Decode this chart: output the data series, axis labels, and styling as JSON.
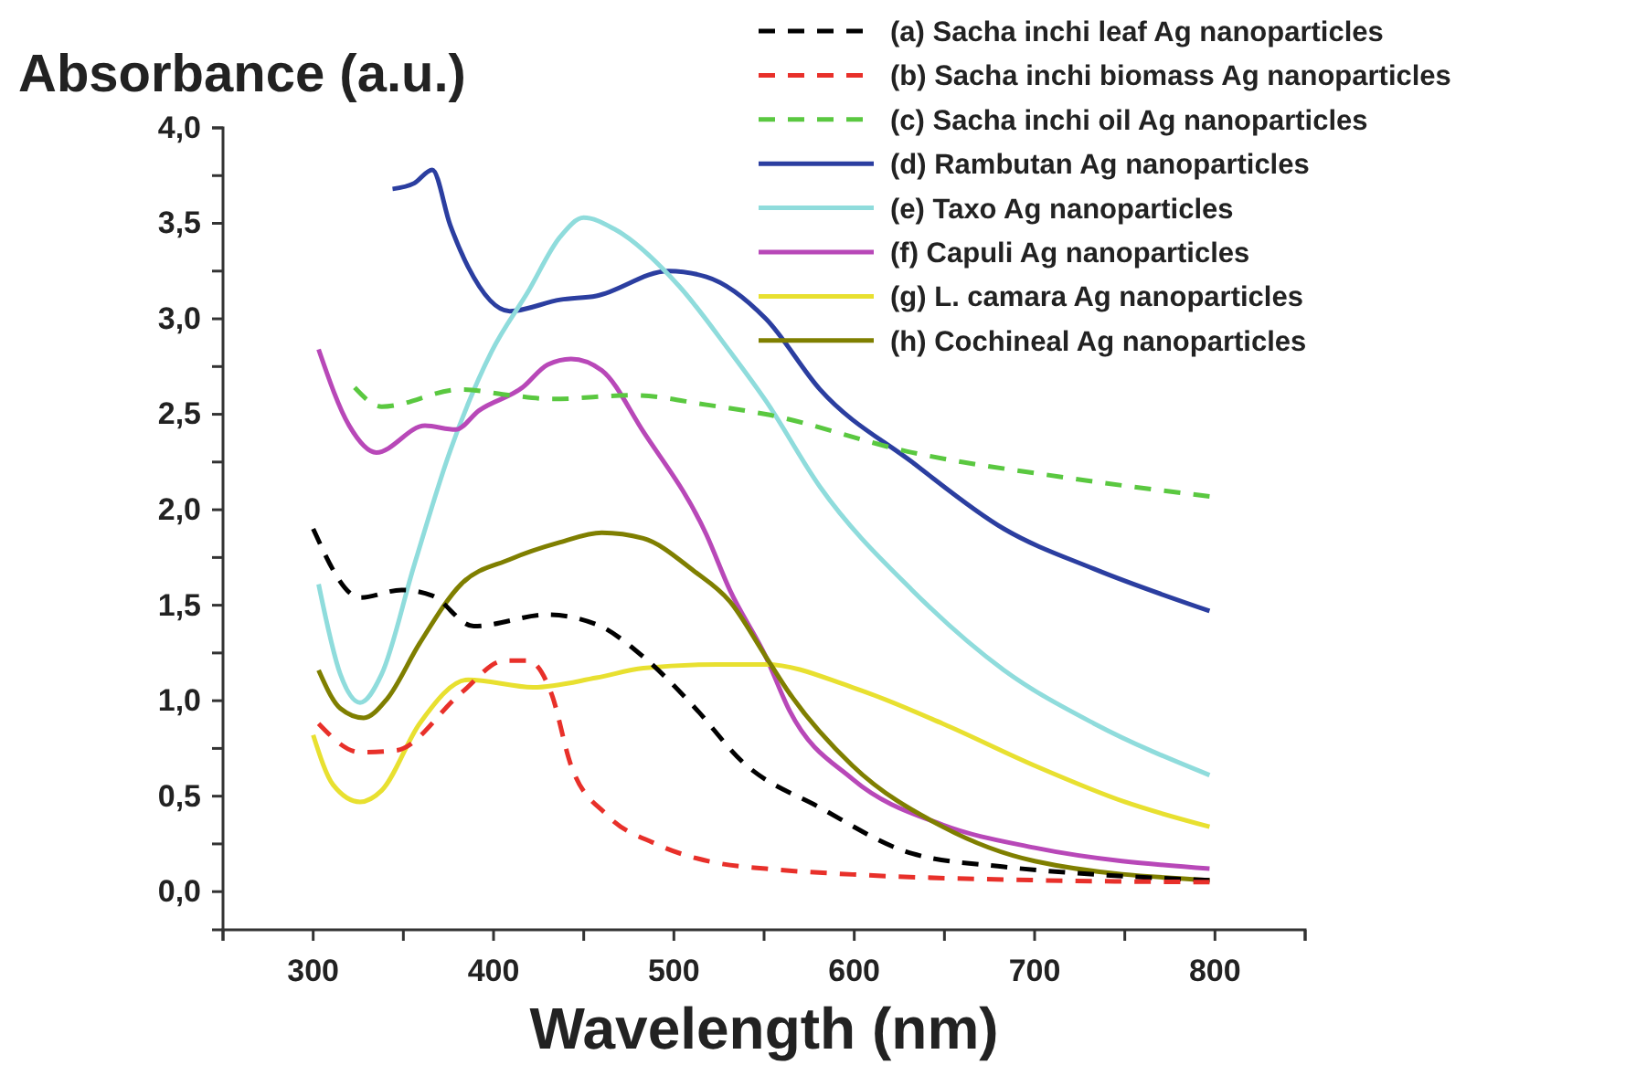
{
  "chart_data": {
    "type": "line",
    "xlabel": "Wavelength (nm)",
    "ylabel": "Absorbance (a.u.)",
    "xlim": [
      250,
      850
    ],
    "xticks": [
      {
        "value": 250,
        "label": null
      },
      300,
      {
        "value": 350,
        "label": null
      },
      400,
      {
        "value": 450,
        "label": null
      },
      500,
      {
        "value": 550,
        "label": null
      },
      600,
      {
        "value": 650,
        "label": null
      },
      700,
      {
        "value": 750,
        "label": null
      },
      800,
      {
        "value": 850,
        "label": null
      }
    ],
    "ylim": [
      -0.2,
      4.0
    ],
    "yticks": [
      {
        "value": 0,
        "label": "0,0"
      },
      {
        "value": 0.25,
        "label": null
      },
      {
        "value": 0.5,
        "label": "0,5"
      },
      {
        "value": 0.75,
        "label": null
      },
      {
        "value": 1,
        "label": "1,0"
      },
      {
        "value": 1.25,
        "label": null
      },
      {
        "value": 1.5,
        "label": "1,5"
      },
      {
        "value": 1.75,
        "label": null
      },
      {
        "value": 2,
        "label": "2,0"
      },
      {
        "value": 2.25,
        "label": null
      },
      {
        "value": 2.5,
        "label": "2,5"
      },
      {
        "value": 2.75,
        "label": null
      },
      {
        "value": 3,
        "label": "3,0"
      },
      {
        "value": 3.25,
        "label": null
      },
      {
        "value": 3.5,
        "label": "3,5"
      },
      {
        "value": 3.75,
        "label": null
      },
      {
        "value": 4,
        "label": "4,0"
      }
    ],
    "grid": false,
    "legend": "top right",
    "marker": "none",
    "series": [
      {
        "name": "(a) Sacha inchi leaf Ag nanoparticles",
        "color": "#000000",
        "line_style": "dashed",
        "x": [
          300,
          326,
          349,
          366,
          389,
          430,
          457,
          483,
          511,
          538,
          581,
          632,
          683,
          733,
          797
        ],
        "values": [
          1.9,
          1.54,
          1.58,
          1.55,
          1.39,
          1.45,
          1.4,
          1.23,
          0.97,
          0.68,
          0.44,
          0.2,
          0.13,
          0.09,
          0.06
        ]
      },
      {
        "name": "(b) Sacha inchi biomass Ag nanoparticles",
        "color": "#e8302a",
        "line_style": "dashed",
        "x": [
          303,
          326,
          346,
          382,
          406,
          419,
          432,
          443,
          463,
          490,
          524,
          551,
          599,
          700,
          797
        ],
        "values": [
          0.88,
          0.73,
          0.74,
          1.04,
          1.21,
          1.21,
          1.04,
          0.66,
          0.4,
          0.25,
          0.15,
          0.12,
          0.09,
          0.06,
          0.05
        ]
      },
      {
        "name": "(c) Sacha inchi oil Ag nanoparticles",
        "color": "#5ac840",
        "line_style": "dashed",
        "x": [
          323,
          338,
          382,
          409,
          433,
          477,
          518,
          551,
          632,
          716,
          797
        ],
        "values": [
          2.64,
          2.54,
          2.63,
          2.6,
          2.58,
          2.6,
          2.55,
          2.5,
          2.3,
          2.17,
          2.07
        ]
      },
      {
        "name": "(d) Rambutan Ag nanoparticles",
        "color": "#2b3ea0",
        "line_style": "solid",
        "x": [
          344,
          356,
          366,
          376,
          386,
          409,
          437,
          457,
          497,
          518,
          551,
          581,
          632,
          683,
          733,
          797
        ],
        "values": [
          3.68,
          3.71,
          3.78,
          3.49,
          3.27,
          3.04,
          3.1,
          3.12,
          3.25,
          3.22,
          3.0,
          2.63,
          2.25,
          1.9,
          1.69,
          1.47
        ]
      },
      {
        "name": "(e) Taxo Ag nanoparticles",
        "color": "#8fdcdc",
        "line_style": "solid",
        "x": [
          303,
          315,
          326,
          338,
          356,
          376,
          399,
          419,
          437,
          450,
          467,
          503,
          531,
          551,
          581,
          632,
          683,
          733,
          797
        ],
        "values": [
          1.61,
          1.14,
          0.99,
          1.14,
          1.71,
          2.31,
          2.83,
          3.14,
          3.43,
          3.53,
          3.47,
          3.17,
          2.83,
          2.57,
          2.12,
          1.58,
          1.16,
          0.88,
          0.61
        ]
      },
      {
        "name": "(f) Capuli Ag nanoparticles",
        "color": "#b848b8",
        "line_style": "solid",
        "x": [
          303,
          320,
          335,
          362,
          379,
          392,
          416,
          430,
          443,
          460,
          483,
          518,
          531,
          551,
          564,
          599,
          649,
          700,
          797
        ],
        "values": [
          2.84,
          2.44,
          2.3,
          2.44,
          2.42,
          2.52,
          2.64,
          2.76,
          2.79,
          2.73,
          2.41,
          1.87,
          1.58,
          1.23,
          0.95,
          0.59,
          0.35,
          0.23,
          0.12
        ]
      },
      {
        "name": "(g) L. camara Ag nanoparticles",
        "color": "#e8e030",
        "line_style": "solid",
        "x": [
          300,
          311,
          326,
          338,
          359,
          386,
          422,
          457,
          483,
          524,
          551,
          599,
          649,
          700,
          750,
          797
        ],
        "values": [
          0.82,
          0.56,
          0.47,
          0.53,
          0.88,
          1.11,
          1.07,
          1.12,
          1.17,
          1.19,
          1.19,
          1.07,
          0.88,
          0.66,
          0.47,
          0.34
        ]
      },
      {
        "name": "(h) Cochineal Ag nanoparticles",
        "color": "#7f7f00",
        "line_style": "solid",
        "x": [
          303,
          315,
          328,
          341,
          359,
          382,
          409,
          437,
          460,
          483,
          511,
          531,
          551,
          564,
          599,
          649,
          700,
          797
        ],
        "values": [
          1.16,
          0.96,
          0.91,
          1.01,
          1.3,
          1.61,
          1.74,
          1.83,
          1.88,
          1.85,
          1.68,
          1.52,
          1.23,
          1.04,
          0.66,
          0.34,
          0.16,
          0.06
        ]
      }
    ]
  }
}
